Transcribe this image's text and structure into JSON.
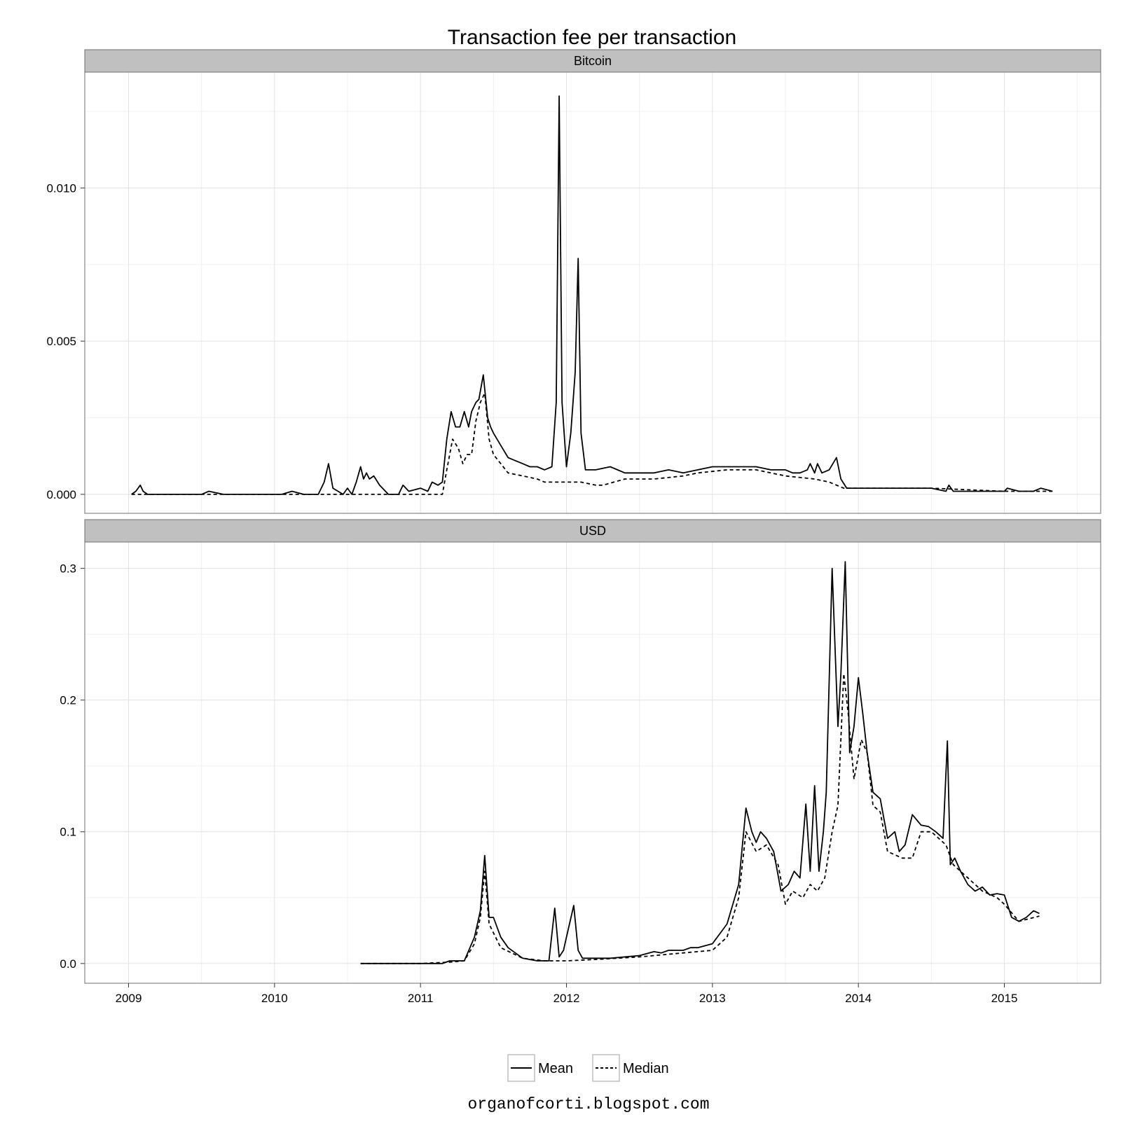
{
  "chart_data": {
    "type": "line",
    "title": "Transaction fee per transaction",
    "footer": "organofcorti.blogspot.com",
    "x_ticks": [
      "2009",
      "2010",
      "2011",
      "2012",
      "2013",
      "2014",
      "2015"
    ],
    "xlim": [
      2008.7,
      2015.66
    ],
    "grid": true,
    "legend_position": "bottom",
    "line_color": "#000000",
    "strip_color": "#c0c0c0",
    "series_styles": [
      {
        "name": "Mean",
        "dash": "solid"
      },
      {
        "name": "Median",
        "dash": "dashed"
      }
    ],
    "panels": [
      {
        "strip": "Bitcoin",
        "ylim": [
          -0.00062,
          0.01378
        ],
        "y_ticks": [
          0.0,
          0.005,
          0.01
        ],
        "y_tick_labels": [
          "0.000",
          "0.005",
          "0.010"
        ],
        "series": [
          {
            "name": "Mean",
            "x": [
              2009.02,
              2009.05,
              2009.08,
              2009.1,
              2009.13,
              2009.2,
              2009.35,
              2009.5,
              2009.55,
              2009.65,
              2009.8,
              2009.9,
              2010.0,
              2010.05,
              2010.12,
              2010.2,
              2010.3,
              2010.34,
              2010.37,
              2010.4,
              2010.47,
              2010.5,
              2010.53,
              2010.56,
              2010.59,
              2010.61,
              2010.63,
              2010.65,
              2010.68,
              2010.72,
              2010.78,
              2010.85,
              2010.88,
              2010.92,
              2011.0,
              2011.05,
              2011.08,
              2011.12,
              2011.15,
              2011.18,
              2011.21,
              2011.24,
              2011.27,
              2011.3,
              2011.33,
              2011.35,
              2011.38,
              2011.4,
              2011.43,
              2011.46,
              2011.48,
              2011.5,
              2011.55,
              2011.6,
              2011.65,
              2011.7,
              2011.75,
              2011.8,
              2011.85,
              2011.9,
              2011.93,
              2011.95,
              2011.97,
              2012.0,
              2012.03,
              2012.06,
              2012.08,
              2012.1,
              2012.13,
              2012.2,
              2012.3,
              2012.4,
              2012.5,
              2012.6,
              2012.7,
              2012.8,
              2012.9,
              2013.0,
              2013.1,
              2013.2,
              2013.3,
              2013.4,
              2013.5,
              2013.55,
              2013.6,
              2013.65,
              2013.67,
              2013.7,
              2013.72,
              2013.75,
              2013.8,
              2013.85,
              2013.88,
              2013.92,
              2014.0,
              2014.1,
              2014.2,
              2014.3,
              2014.4,
              2014.5,
              2014.6,
              2014.62,
              2014.65,
              2014.8,
              2015.0,
              2015.02,
              2015.1,
              2015.2,
              2015.25,
              2015.33
            ],
            "y": [
              0.0,
              0.0001,
              0.0003,
              0.0001,
              0.0,
              0.0,
              0.0,
              0.0,
              0.0001,
              0.0,
              0.0,
              0.0,
              0.0,
              0.0,
              0.0001,
              0.0,
              0.0,
              0.0004,
              0.001,
              0.0002,
              0.0,
              0.0002,
              0.0,
              0.0004,
              0.0009,
              0.0005,
              0.0007,
              0.0005,
              0.0006,
              0.0003,
              0.0,
              0.0,
              0.0003,
              0.0001,
              0.0002,
              0.0001,
              0.0004,
              0.0003,
              0.0004,
              0.0018,
              0.0027,
              0.0022,
              0.0022,
              0.0027,
              0.0022,
              0.0027,
              0.003,
              0.0031,
              0.0039,
              0.0025,
              0.0022,
              0.002,
              0.0016,
              0.0012,
              0.0011,
              0.001,
              0.0009,
              0.0009,
              0.0008,
              0.0009,
              0.003,
              0.013,
              0.003,
              0.0009,
              0.002,
              0.004,
              0.0077,
              0.002,
              0.0008,
              0.0008,
              0.0009,
              0.0007,
              0.0007,
              0.0007,
              0.0008,
              0.0007,
              0.0008,
              0.0009,
              0.0009,
              0.0009,
              0.0009,
              0.0008,
              0.0008,
              0.0007,
              0.0007,
              0.0008,
              0.001,
              0.0007,
              0.001,
              0.0007,
              0.0008,
              0.0012,
              0.0005,
              0.0002,
              0.0002,
              0.0002,
              0.0002,
              0.0002,
              0.0002,
              0.0002,
              0.0001,
              0.0003,
              0.0001,
              0.0001,
              0.0001,
              0.0002,
              0.0001,
              0.0001,
              0.0002,
              0.0001
            ]
          },
          {
            "name": "Median",
            "x": [
              2009.02,
              2010.5,
              2011.0,
              2011.15,
              2011.18,
              2011.22,
              2011.26,
              2011.29,
              2011.32,
              2011.35,
              2011.38,
              2011.41,
              2011.44,
              2011.47,
              2011.5,
              2011.55,
              2011.6,
              2011.7,
              2011.8,
              2011.85,
              2011.95,
              2012.0,
              2012.1,
              2012.2,
              2012.25,
              2012.4,
              2012.6,
              2012.8,
              2012.9,
              2013.1,
              2013.3,
              2013.4,
              2013.5,
              2013.7,
              2013.8,
              2013.9,
              2014.0,
              2014.5,
              2015.0,
              2015.33
            ],
            "y": [
              0.0,
              0.0,
              0.0,
              0.0,
              0.0008,
              0.0018,
              0.0015,
              0.001,
              0.0013,
              0.0013,
              0.0024,
              0.003,
              0.0033,
              0.0018,
              0.0013,
              0.001,
              0.0007,
              0.0006,
              0.0005,
              0.0004,
              0.0004,
              0.0004,
              0.0004,
              0.0003,
              0.0003,
              0.0005,
              0.0005,
              0.0006,
              0.0007,
              0.0008,
              0.0008,
              0.0007,
              0.0006,
              0.0005,
              0.0004,
              0.0002,
              0.0002,
              0.0002,
              0.0001,
              0.0001
            ]
          }
        ]
      },
      {
        "strip": "USD",
        "ylim": [
          -0.015,
          0.32
        ],
        "y_ticks": [
          0.0,
          0.1,
          0.2,
          0.3
        ],
        "y_tick_labels": [
          "0.0",
          "0.1",
          "0.2",
          "0.3"
        ],
        "series": [
          {
            "name": "Mean",
            "x": [
              2010.59,
              2010.8,
              2011.0,
              2011.15,
              2011.2,
              2011.3,
              2011.37,
              2011.41,
              2011.44,
              2011.47,
              2011.5,
              2011.55,
              2011.6,
              2011.7,
              2011.8,
              2011.88,
              2011.92,
              2011.95,
              2011.98,
              2012.0,
              2012.05,
              2012.08,
              2012.11,
              2012.15,
              2012.3,
              2012.5,
              2012.6,
              2012.65,
              2012.7,
              2012.8,
              2012.85,
              2012.9,
              2013.0,
              2013.1,
              2013.18,
              2013.23,
              2013.27,
              2013.3,
              2013.33,
              2013.37,
              2013.42,
              2013.47,
              2013.52,
              2013.56,
              2013.6,
              2013.64,
              2013.67,
              2013.7,
              2013.73,
              2013.76,
              2013.78,
              2013.82,
              2013.86,
              2013.88,
              2013.91,
              2013.94,
              2013.97,
              2014.0,
              2014.03,
              2014.06,
              2014.1,
              2014.15,
              2014.2,
              2014.25,
              2014.28,
              2014.32,
              2014.37,
              2014.43,
              2014.48,
              2014.53,
              2014.58,
              2014.61,
              2014.63,
              2014.66,
              2014.7,
              2014.75,
              2014.8,
              2014.85,
              2014.9,
              2014.95,
              2015.0,
              2015.05,
              2015.1,
              2015.15,
              2015.2,
              2015.24
            ],
            "y": [
              0.0,
              0.0,
              0.0,
              0.0,
              0.002,
              0.002,
              0.02,
              0.04,
              0.082,
              0.035,
              0.035,
              0.02,
              0.012,
              0.004,
              0.002,
              0.002,
              0.042,
              0.005,
              0.01,
              0.02,
              0.044,
              0.01,
              0.004,
              0.004,
              0.004,
              0.006,
              0.009,
              0.008,
              0.01,
              0.01,
              0.012,
              0.012,
              0.015,
              0.03,
              0.06,
              0.118,
              0.1,
              0.092,
              0.1,
              0.095,
              0.085,
              0.055,
              0.06,
              0.07,
              0.065,
              0.121,
              0.07,
              0.135,
              0.07,
              0.1,
              0.13,
              0.3,
              0.18,
              0.22,
              0.305,
              0.16,
              0.18,
              0.217,
              0.19,
              0.16,
              0.13,
              0.125,
              0.095,
              0.1,
              0.085,
              0.09,
              0.113,
              0.105,
              0.104,
              0.1,
              0.095,
              0.169,
              0.075,
              0.08,
              0.07,
              0.06,
              0.055,
              0.058,
              0.052,
              0.053,
              0.052,
              0.035,
              0.032,
              0.035,
              0.04,
              0.038
            ]
          },
          {
            "name": "Median",
            "x": [
              2010.59,
              2011.0,
              2011.2,
              2011.3,
              2011.37,
              2011.41,
              2011.44,
              2011.47,
              2011.55,
              2011.7,
              2011.85,
              2012.0,
              2012.2,
              2012.5,
              2012.8,
              2013.0,
              2013.1,
              2013.18,
              2013.23,
              2013.3,
              2013.37,
              2013.45,
              2013.5,
              2013.55,
              2013.62,
              2013.67,
              2013.72,
              2013.77,
              2013.82,
              2013.86,
              2013.9,
              2013.93,
              2013.97,
              2014.02,
              2014.06,
              2014.1,
              2014.15,
              2014.2,
              2014.3,
              2014.37,
              2014.43,
              2014.5,
              2014.6,
              2014.65,
              2014.75,
              2014.85,
              2014.95,
              2015.0,
              2015.1,
              2015.24
            ],
            "y": [
              0.0,
              0.0,
              0.001,
              0.002,
              0.015,
              0.035,
              0.07,
              0.03,
              0.012,
              0.004,
              0.002,
              0.002,
              0.003,
              0.005,
              0.008,
              0.01,
              0.02,
              0.05,
              0.1,
              0.085,
              0.09,
              0.075,
              0.045,
              0.055,
              0.05,
              0.06,
              0.055,
              0.065,
              0.1,
              0.12,
              0.22,
              0.19,
              0.14,
              0.17,
              0.16,
              0.12,
              0.115,
              0.085,
              0.08,
              0.08,
              0.1,
              0.1,
              0.09,
              0.075,
              0.065,
              0.055,
              0.05,
              0.045,
              0.032,
              0.036
            ]
          }
        ]
      }
    ]
  }
}
